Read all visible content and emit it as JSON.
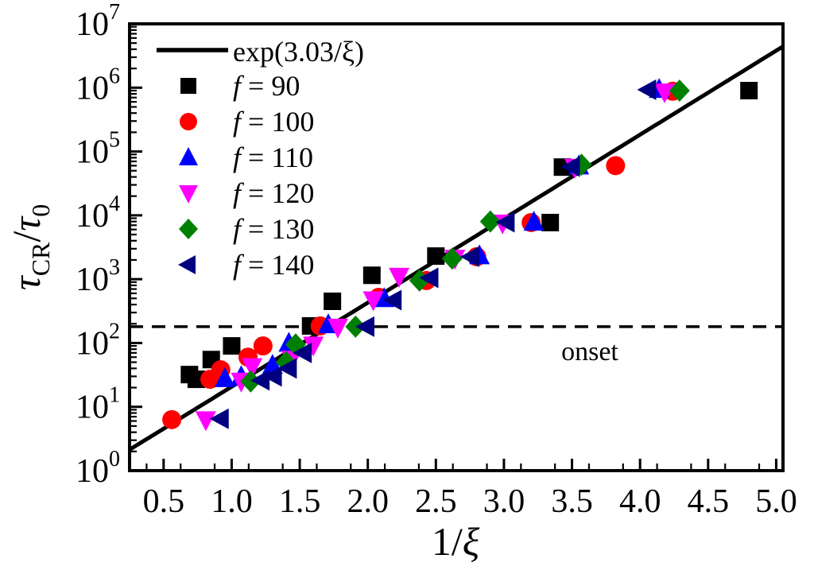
{
  "figure": {
    "background": "#ffffff",
    "onset_label": "onset",
    "xlabel": {
      "num": "1/",
      "xi": "ξ"
    },
    "ylabel": {
      "tau1": "τ",
      "sub1": "CR",
      "slash": "/",
      "tau2": "τ",
      "sub2": "0"
    }
  },
  "chart_data": {
    "type": "scatter",
    "title": "",
    "xlabel": "1/ξ",
    "ylabel": "τ_CR/τ_0",
    "grid": false,
    "legend_position": "top-left",
    "x_axis": {
      "min": 0.25,
      "max": 5.05,
      "major_ticks": [
        0.5,
        1.0,
        1.5,
        2.0,
        2.5,
        3.0,
        3.5,
        4.0,
        4.5,
        5.0
      ],
      "tick_labels": [
        "0.5",
        "1.0",
        "1.5",
        "2.0",
        "2.5",
        "3.0",
        "3.5",
        "4.0",
        "4.5",
        "5.0"
      ],
      "minor_step": 0.25
    },
    "y_axis": {
      "scale": "log",
      "min_exp": 0,
      "max_exp": 7,
      "tick_base": "10",
      "tick_exponents": [
        0,
        1,
        2,
        3,
        4,
        5,
        6,
        7
      ]
    },
    "fit_line": {
      "label": "exp(3.03/ξ)",
      "coefficient": 3.03,
      "color": "#000000",
      "style": "solid"
    },
    "onset_line": {
      "label": "onset",
      "y_value": 180,
      "color": "#000000",
      "style": "dashed"
    },
    "series": [
      {
        "name": "f = 90",
        "f": 90,
        "marker": "square",
        "color": "#000000",
        "points": [
          [
            0.69,
            32
          ],
          [
            0.74,
            27
          ],
          [
            0.85,
            55
          ],
          [
            1.0,
            90
          ],
          [
            1.58,
            185
          ],
          [
            1.74,
            450
          ],
          [
            2.03,
            1150
          ],
          [
            2.5,
            2300
          ],
          [
            3.34,
            7700
          ],
          [
            3.43,
            57000
          ],
          [
            4.8,
            900000
          ]
        ]
      },
      {
        "name": "f = 100",
        "f": 100,
        "marker": "circle",
        "color": "#ff0000",
        "points": [
          [
            0.56,
            6.3
          ],
          [
            0.84,
            27
          ],
          [
            0.92,
            38
          ],
          [
            1.12,
            60
          ],
          [
            1.23,
            90
          ],
          [
            1.65,
            185
          ],
          [
            2.08,
            520
          ],
          [
            2.43,
            950
          ],
          [
            2.8,
            2250
          ],
          [
            3.2,
            7700
          ],
          [
            3.82,
            60000
          ],
          [
            4.24,
            880000
          ]
        ]
      },
      {
        "name": "f = 110",
        "f": 110,
        "marker": "triangle-up",
        "color": "#0000ff",
        "points": [
          [
            0.95,
            28
          ],
          [
            1.07,
            30
          ],
          [
            1.3,
            45
          ],
          [
            1.42,
            100
          ],
          [
            1.71,
            195
          ],
          [
            2.12,
            500
          ],
          [
            2.82,
            2350
          ],
          [
            3.22,
            7900
          ],
          [
            3.55,
            60000
          ],
          [
            4.14,
            950000
          ]
        ]
      },
      {
        "name": "f = 120",
        "f": 120,
        "marker": "triangle-down",
        "color": "#ff00ff",
        "points": [
          [
            0.81,
            6.2
          ],
          [
            1.07,
            25
          ],
          [
            1.15,
            42
          ],
          [
            1.44,
            55
          ],
          [
            1.6,
            92
          ],
          [
            1.78,
            175
          ],
          [
            2.04,
            470
          ],
          [
            2.23,
            1100
          ],
          [
            2.64,
            2100
          ],
          [
            2.99,
            7500
          ],
          [
            3.52,
            56000
          ],
          [
            4.18,
            850000
          ]
        ]
      },
      {
        "name": "f = 130",
        "f": 130,
        "marker": "diamond",
        "color": "#008000",
        "points": [
          [
            1.14,
            25
          ],
          [
            1.4,
            50
          ],
          [
            1.47,
            95
          ],
          [
            1.91,
            180
          ],
          [
            2.38,
            950
          ],
          [
            2.62,
            2100
          ],
          [
            2.9,
            8000
          ],
          [
            3.57,
            62000
          ],
          [
            4.29,
            900000
          ]
        ]
      },
      {
        "name": "f = 140",
        "f": 140,
        "marker": "triangle-left",
        "color": "#000080",
        "points": [
          [
            0.92,
            6.5
          ],
          [
            1.22,
            26
          ],
          [
            1.31,
            30
          ],
          [
            1.42,
            40
          ],
          [
            1.53,
            70
          ],
          [
            1.99,
            180
          ],
          [
            2.19,
            470
          ],
          [
            2.46,
            1050
          ],
          [
            2.76,
            2250
          ],
          [
            3.02,
            7800
          ],
          [
            3.5,
            58000
          ],
          [
            4.06,
            930000
          ]
        ]
      }
    ]
  }
}
